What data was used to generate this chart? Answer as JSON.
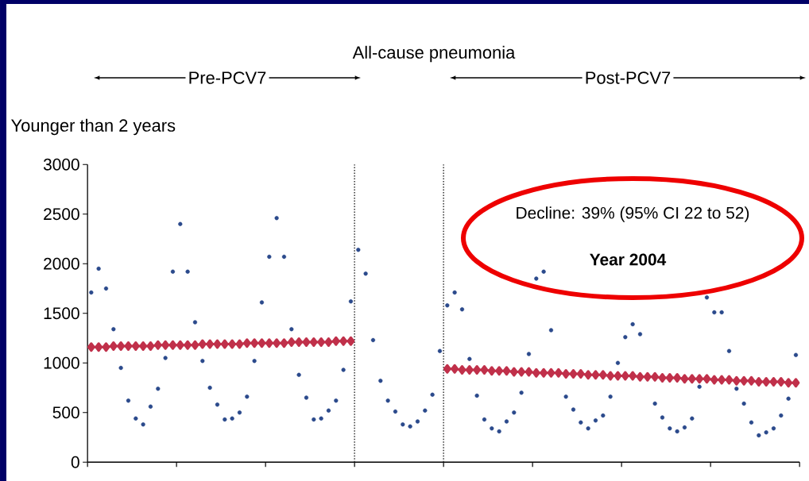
{
  "chart_data": {
    "type": "scatter",
    "title": "All-cause pneumonia",
    "ylabel": "Younger than 2 years",
    "annotations": [
      "Pre-PCV7",
      "Post-PCV7",
      "Decline: 39% (95% CI  22 to 52)",
      "Year 2004"
    ],
    "categories": [
      null,
      null,
      null,
      null,
      null,
      null,
      null,
      null,
      null,
      null,
      null,
      null,
      null,
      null,
      null,
      null,
      null,
      null,
      null,
      null,
      null,
      null,
      null,
      null,
      null,
      null,
      null,
      null,
      null,
      null,
      null,
      null,
      null,
      null,
      null,
      null,
      null,
      null,
      null,
      null,
      null,
      null,
      null,
      null,
      null,
      null,
      null,
      null,
      null,
      null,
      null,
      null,
      null,
      null,
      null,
      null,
      null,
      null,
      null,
      null,
      null,
      null,
      null,
      null,
      null,
      null,
      null,
      null,
      null,
      null,
      null,
      null,
      null,
      null,
      null,
      null,
      null,
      null,
      null,
      null,
      null,
      null,
      null,
      null,
      null,
      null,
      null,
      null,
      null,
      null,
      null,
      null,
      null,
      null,
      null,
      null
    ],
    "series": [
      {
        "color": "#2b4a8c",
        "marker": "circle",
        "values": [
          1710,
          1950,
          1750,
          1340,
          950,
          620,
          440,
          380,
          560,
          740,
          1050,
          1920,
          2400,
          1920,
          1410,
          1020,
          750,
          580,
          430,
          440,
          500,
          660,
          1020,
          1610,
          2070,
          2460,
          2070,
          1340,
          880,
          650,
          430,
          440,
          520,
          620,
          930,
          1620,
          2140,
          1900,
          1230,
          820,
          620,
          510,
          380,
          360,
          410,
          520,
          680,
          1120,
          1580,
          1710,
          1540,
          1040,
          670,
          430,
          340,
          310,
          410,
          500,
          700,
          1090,
          1850,
          1920,
          1330,
          null,
          660,
          530,
          400,
          340,
          420,
          470,
          660,
          1000,
          1260,
          1390,
          1290,
          null,
          590,
          450,
          340,
          310,
          350,
          440,
          760,
          1660,
          1510,
          1510,
          1120,
          740,
          590,
          400,
          270,
          300,
          340,
          470,
          640,
          1080
        ]
      },
      {
        "type": "line",
        "color": "#c0304a",
        "marker": "diamond",
        "values": [
          1160,
          1160,
          1160,
          1170,
          1170,
          1170,
          1170,
          1170,
          1170,
          1180,
          1180,
          1180,
          1180,
          1180,
          1180,
          1190,
          1190,
          1190,
          1190,
          1190,
          1190,
          1200,
          1200,
          1200,
          1200,
          1200,
          1200,
          1210,
          1210,
          1210,
          1210,
          1210,
          1210,
          1220,
          1220,
          1220,
          null,
          null,
          null,
          null,
          null,
          null,
          null,
          null,
          null,
          null,
          null,
          null,
          null,
          null,
          null,
          null,
          null,
          null,
          null,
          null,
          null,
          null,
          null,
          null,
          null,
          null,
          null,
          null,
          null,
          null,
          null,
          null,
          null,
          null,
          null,
          null,
          null,
          null,
          null,
          null,
          null,
          null,
          null,
          null,
          null,
          null,
          null,
          null,
          null,
          null,
          null,
          null,
          null,
          null,
          null,
          null,
          null,
          null,
          null,
          null
        ]
      },
      {
        "type": "line",
        "color": "#c0304a",
        "marker": "diamond",
        "values": [
          null,
          null,
          null,
          null,
          null,
          null,
          null,
          null,
          null,
          null,
          null,
          null,
          null,
          null,
          null,
          null,
          null,
          null,
          null,
          null,
          null,
          null,
          null,
          null,
          null,
          null,
          null,
          null,
          null,
          null,
          null,
          null,
          null,
          null,
          null,
          null,
          null,
          null,
          null,
          null,
          null,
          null,
          null,
          null,
          null,
          null,
          null,
          null,
          940,
          940,
          930,
          930,
          930,
          930,
          920,
          920,
          920,
          910,
          910,
          910,
          900,
          900,
          900,
          900,
          890,
          890,
          890,
          880,
          880,
          880,
          870,
          870,
          870,
          870,
          860,
          860,
          860,
          850,
          850,
          850,
          840,
          840,
          840,
          840,
          830,
          830,
          830,
          820,
          820,
          820,
          810,
          810,
          810,
          810,
          800,
          800
        ]
      }
    ],
    "ylim": [
      0,
      3000
    ],
    "yticks": [
      0,
      500,
      1000,
      1500,
      2000,
      2500,
      3000
    ],
    "tick_labels": "y"
  }
}
